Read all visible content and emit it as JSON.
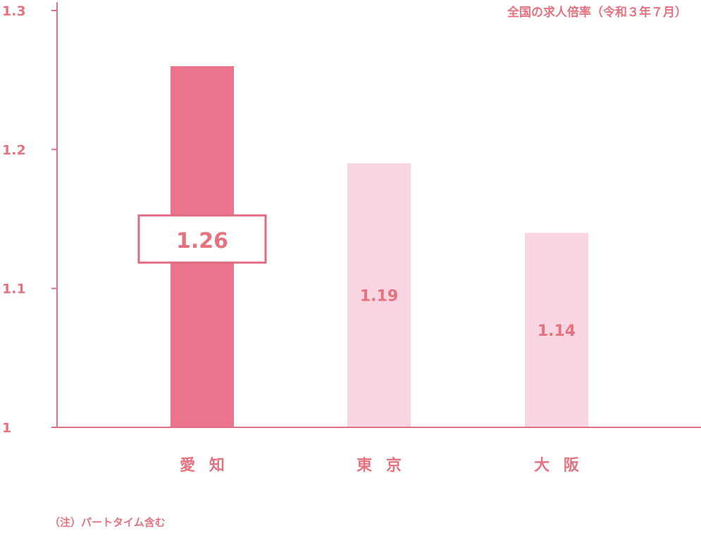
{
  "chart_data": {
    "type": "bar",
    "title": "全国の求人倍率（令和３年７月）",
    "categories": [
      "愛 知",
      "東 京",
      "大 阪"
    ],
    "values": [
      1.26,
      1.19,
      1.14
    ],
    "value_labels": [
      "1.26",
      "1.19",
      "1.14"
    ],
    "highlight_index": 0,
    "ylim": [
      1,
      1.3
    ],
    "yticks": [
      1,
      1.1,
      1.2,
      1.3
    ],
    "ytick_labels": [
      "1",
      "1.1",
      "1.2",
      "1.3"
    ],
    "grid": false,
    "note": "（注）パートタイム含む",
    "colors": {
      "highlight": "#ec738c",
      "bar": "#f8d5e0",
      "axis": "#e06f83",
      "text": "#e5727f",
      "label_box_border": "#de6b80"
    }
  }
}
